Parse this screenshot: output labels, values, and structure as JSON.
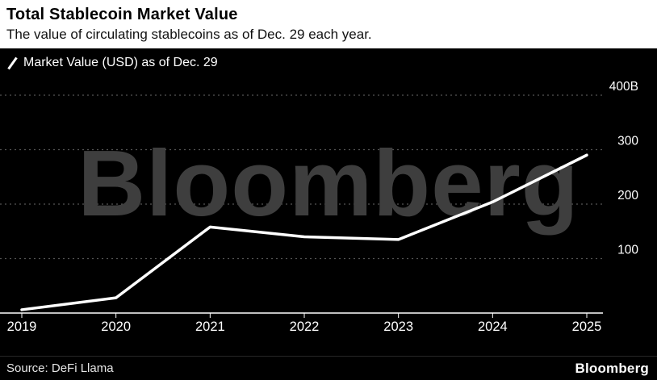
{
  "header": {
    "title": "Total Stablecoin Market Value",
    "subtitle": "The value of circulating stablecoins as of Dec. 29 each year."
  },
  "legend": {
    "label": "Market Value (USD) as of Dec. 29"
  },
  "watermark": "Bloomberg",
  "footer": {
    "source": "Source: DeFi Llama",
    "brand": "Bloomberg"
  },
  "colors": {
    "header_bg": "#ffffff",
    "chart_bg": "#000000",
    "line": "#ffffff",
    "grid": "#555555",
    "axis": "#ffffff",
    "tick_text": "#ffffff",
    "watermark": "#3e3e3e"
  },
  "chart_data": {
    "type": "line",
    "x": [
      "2019",
      "2020",
      "2021",
      "2022",
      "2023",
      "2024",
      "2025"
    ],
    "series": [
      {
        "name": "Market Value (USD) as of Dec. 29",
        "values": [
          6,
          28,
          158,
          140,
          135,
          204,
          290
        ]
      }
    ],
    "title": "Total Stablecoin Market Value",
    "xlabel": "",
    "ylabel": "",
    "ylim": [
      0,
      400
    ],
    "y_ticks": [
      100,
      200,
      300,
      400
    ],
    "y_tick_labels": [
      "100",
      "200",
      "300",
      "400B"
    ],
    "legend_position": "top-left",
    "grid": "horizontal-dotted"
  }
}
